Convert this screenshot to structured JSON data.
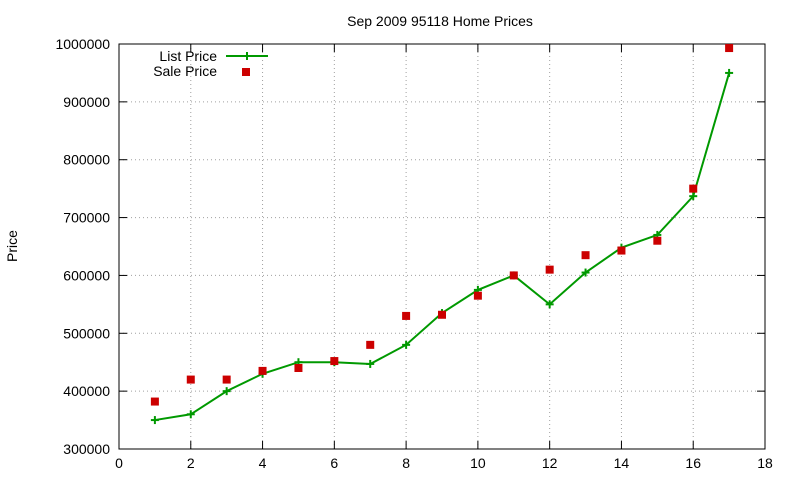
{
  "chart_data": {
    "type": "line",
    "title": "Sep 2009 95118 Home Prices",
    "xlabel": "",
    "ylabel": "Price",
    "xlim": [
      0,
      18
    ],
    "ylim": [
      300000,
      1000000
    ],
    "xticks": [
      0,
      2,
      4,
      6,
      8,
      10,
      12,
      14,
      16,
      18
    ],
    "yticks": [
      300000,
      400000,
      500000,
      600000,
      700000,
      800000,
      900000,
      1000000
    ],
    "grid": true,
    "legend_position": "top-left",
    "series": [
      {
        "name": "List Price",
        "style": "line-with-plus-markers",
        "color": "#009900",
        "x": [
          1,
          2,
          3,
          4,
          5,
          6,
          7,
          8,
          9,
          10,
          11,
          12,
          13,
          14,
          15,
          16,
          17
        ],
        "y": [
          350000,
          360000,
          400000,
          430000,
          450000,
          450000,
          447000,
          480000,
          535000,
          575000,
          600000,
          550000,
          605000,
          648000,
          670000,
          737000,
          950000
        ]
      },
      {
        "name": "Sale Price",
        "style": "square-markers",
        "color": "#cc0000",
        "x": [
          1,
          2,
          3,
          4,
          5,
          6,
          7,
          8,
          9,
          10,
          11,
          12,
          13,
          14,
          15,
          16,
          17
        ],
        "y": [
          382000,
          420000,
          420000,
          435000,
          440000,
          452000,
          480000,
          530000,
          532000,
          565000,
          600000,
          610000,
          635000,
          643000,
          660000,
          750000,
          993000
        ]
      }
    ]
  }
}
